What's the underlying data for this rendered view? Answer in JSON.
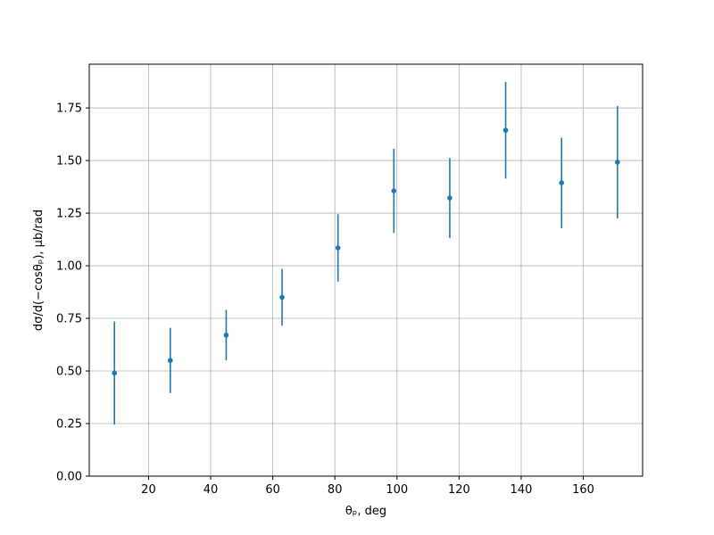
{
  "chart_data": {
    "type": "errorbar",
    "xlabel": "θₚ, deg",
    "ylabel": "dσ/d(−cosθₚ), μb/rad",
    "x": [
      9,
      27,
      45,
      63,
      81,
      99,
      117,
      135,
      153,
      171
    ],
    "series": [
      {
        "color": "#1f77b4",
        "values": [
          0.49,
          0.55,
          0.67,
          0.85,
          1.085,
          1.356,
          1.322,
          1.644,
          1.394,
          1.492
        ],
        "errors": [
          0.245,
          0.155,
          0.12,
          0.135,
          0.16,
          0.2,
          0.19,
          0.23,
          0.215,
          0.267
        ]
      }
    ],
    "xlim": [
      0.9,
      179.1
    ],
    "ylim": [
      0,
      1.958
    ],
    "xticks": [
      20,
      40,
      60,
      80,
      100,
      120,
      140,
      160
    ],
    "yticks": [
      {
        "value": 0,
        "label": "0.00"
      },
      {
        "value": 0.25,
        "label": "0.25"
      },
      {
        "value": 0.5,
        "label": "0.50"
      },
      {
        "value": 0.75,
        "label": "0.75"
      },
      {
        "value": 1,
        "label": "1.00"
      },
      {
        "value": 1.25,
        "label": "1.25"
      },
      {
        "value": 1.5,
        "label": "1.50"
      },
      {
        "value": 1.75,
        "label": "1.75"
      }
    ],
    "grid": true
  }
}
